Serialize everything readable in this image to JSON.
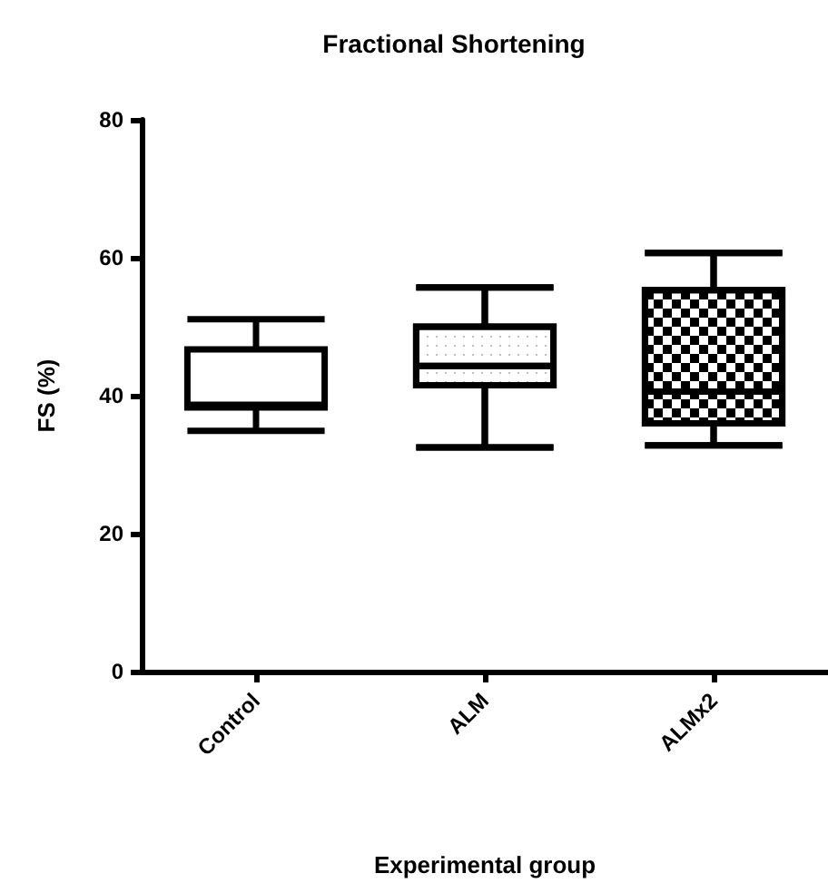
{
  "chart_data": {
    "type": "box",
    "title": "Fractional Shortening",
    "xlabel": "Experimental group",
    "ylabel": "FS (%)",
    "categories": [
      "Control",
      "ALM",
      "ALMx2"
    ],
    "boxes": [
      {
        "low": 34.9,
        "q1": 38.3,
        "median": 38.7,
        "q3": 46.7,
        "high": 51.1
      },
      {
        "low": 32.5,
        "q1": 41.5,
        "median": 44.3,
        "q3": 50.0,
        "high": 55.7
      },
      {
        "low": 32.8,
        "q1": 36.0,
        "median": 40.6,
        "q3": 55.3,
        "high": 60.7
      }
    ],
    "color": "#000000",
    "ylim": [
      0,
      80
    ],
    "yticks": [
      0,
      20,
      40,
      60,
      80
    ],
    "grid": false
  }
}
